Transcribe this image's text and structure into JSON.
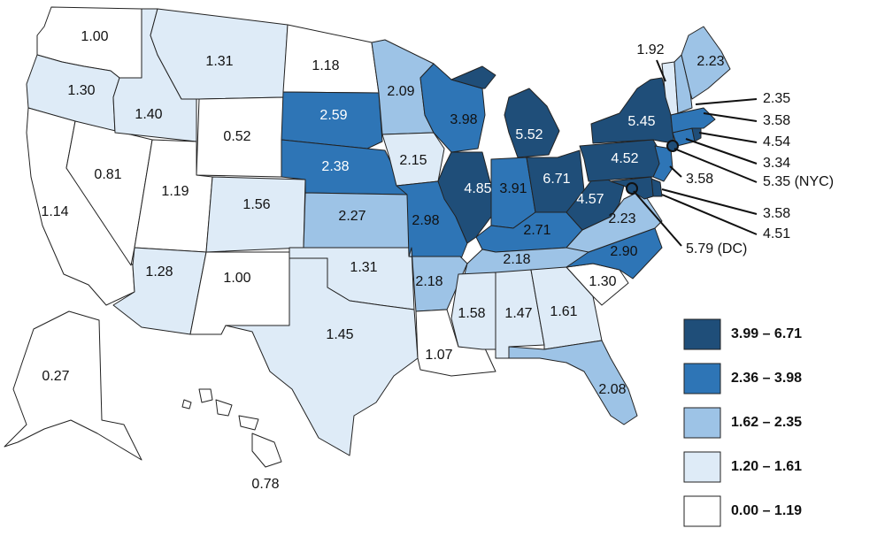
{
  "colors": {
    "class5": "#1f4e79",
    "class4": "#2e75b6",
    "class3": "#9dc3e6",
    "class2": "#deebf7",
    "class1": "#ffffff"
  },
  "legend": [
    {
      "label": "3.99 – 6.71",
      "color": "#1f4e79"
    },
    {
      "label": "2.36 – 3.98",
      "color": "#2e75b6"
    },
    {
      "label": "1.62 – 2.35",
      "color": "#9dc3e6"
    },
    {
      "label": "1.20 – 1.61",
      "color": "#deebf7"
    },
    {
      "label": "0.00 – 1.19",
      "color": "#ffffff"
    }
  ],
  "states": {
    "WA": "1.00",
    "OR": "1.30",
    "CA": "1.14",
    "NV": "0.81",
    "ID": "1.40",
    "MT": "1.31",
    "WY": "0.52",
    "UT": "1.19",
    "CO": "1.56",
    "AZ": "1.28",
    "NM": "1.00",
    "ND": "1.18",
    "SD": "2.59",
    "NE": "2.38",
    "KS": "2.27",
    "OK": "1.31",
    "TX": "1.45",
    "MN": "2.09",
    "IA": "2.15",
    "MO": "2.98",
    "AR": "2.18",
    "LA": "1.07",
    "WI": "3.98",
    "IL": "4.85",
    "MI": "5.52",
    "IN": "3.91",
    "OH": "6.71",
    "KY": "2.71",
    "TN": "2.18",
    "MS": "1.58",
    "AL": "1.47",
    "GA": "1.61",
    "FL": "2.08",
    "SC": "1.30",
    "NC": "2.90",
    "VA": "2.23",
    "WV": "4.57",
    "PA": "4.52",
    "NY": "5.45",
    "VT": "1.92",
    "ME": "2.23",
    "AK": "0.27",
    "HI": "0.78"
  },
  "callouts": {
    "NH": "2.35",
    "MA": "3.58",
    "RI": "4.54",
    "CT": "3.34",
    "NYC": "5.35 (NYC)",
    "NJ": "3.58",
    "DE": "3.58",
    "MD": "4.51",
    "DC": "5.79 (DC)"
  }
}
